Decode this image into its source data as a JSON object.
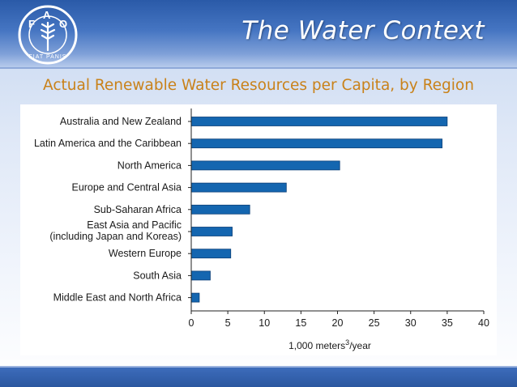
{
  "slide": {
    "title": "The Water Context",
    "subtitle": "Actual Renewable Water Resources per Capita, by Region",
    "logo_text": "FAO FIAT PANIS"
  },
  "colors": {
    "bar": "#1466b0",
    "bar_stroke": "#0b3f78",
    "header": "#3565b4",
    "subtitle": "#c9821a"
  },
  "chart_data": {
    "type": "bar",
    "orientation": "horizontal",
    "categories": [
      [
        "Australia and New Zealand"
      ],
      [
        "Latin America and the Caribbean"
      ],
      [
        "North America"
      ],
      [
        "Europe and Central Asia"
      ],
      [
        "Sub-Saharan Africa"
      ],
      [
        "East Asia and Pacific",
        "(including Japan and Koreas)"
      ],
      [
        "Western Europe"
      ],
      [
        "South Asia"
      ],
      [
        "Middle East and North Africa"
      ]
    ],
    "values": [
      35,
      34.3,
      20.3,
      13,
      8,
      5.6,
      5.4,
      2.6,
      1.1
    ],
    "xlim": [
      0,
      40
    ],
    "xticks": [
      0,
      5,
      10,
      15,
      20,
      25,
      30,
      35,
      40
    ],
    "xlabel_main": "1,000 meters",
    "xlabel_sup": "3",
    "xlabel_tail": "/year",
    "grid": false,
    "legend": "none"
  }
}
